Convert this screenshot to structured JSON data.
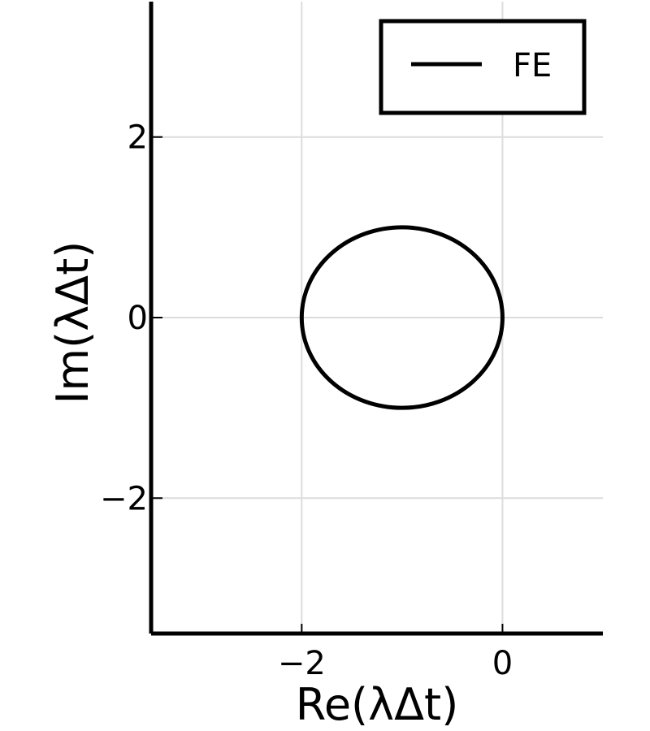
{
  "chart_data": {
    "type": "line",
    "xlabel": "Re(λΔt)",
    "ylabel": "Im(λΔt)",
    "xlim": [
      -3.5,
      1.0
    ],
    "ylim": [
      -3.5,
      3.5
    ],
    "x_ticks": [
      -2,
      0
    ],
    "y_ticks": [
      -2,
      0,
      2
    ],
    "x_tick_labels": [
      "−2",
      "0"
    ],
    "y_tick_labels": [
      "−2",
      "0",
      "2"
    ],
    "grid": true,
    "legend_position": "top-right",
    "series": [
      {
        "name": "FE",
        "color": "#000000",
        "shape": "circle",
        "center": [
          -1,
          0
        ],
        "radius": 1
      }
    ]
  }
}
